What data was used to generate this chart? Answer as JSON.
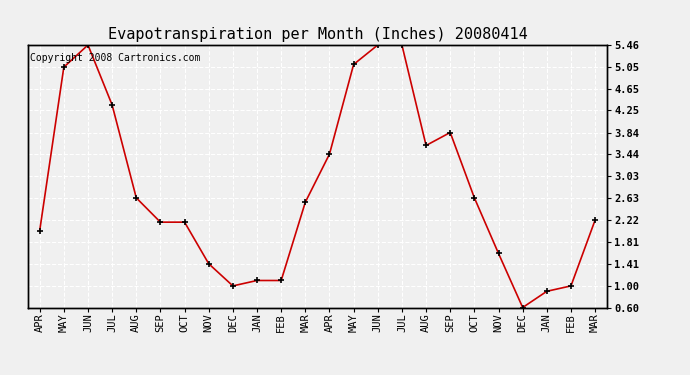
{
  "title": "Evapotranspiration per Month (Inches) 20080414",
  "copyright": "Copyright 2008 Cartronics.com",
  "x_labels": [
    "APR",
    "MAY",
    "JUN",
    "JUL",
    "AUG",
    "SEP",
    "OCT",
    "NOV",
    "DEC",
    "JAN",
    "FEB",
    "MAR",
    "APR",
    "MAY",
    "JUN",
    "JUL",
    "AUG",
    "SEP",
    "OCT",
    "NOV",
    "DEC",
    "JAN",
    "FEB",
    "MAR"
  ],
  "y_values": [
    2.02,
    5.05,
    5.46,
    4.35,
    2.63,
    2.18,
    2.18,
    1.41,
    1.0,
    1.1,
    1.1,
    2.55,
    3.44,
    5.1,
    5.46,
    5.46,
    3.6,
    3.84,
    2.63,
    1.6,
    0.6,
    0.9,
    1.0,
    2.22
  ],
  "y_ticks": [
    0.6,
    1.0,
    1.41,
    1.81,
    2.22,
    2.63,
    3.03,
    3.44,
    3.84,
    4.25,
    4.65,
    5.05,
    5.46
  ],
  "line_color": "#cc0000",
  "marker_color": "#000000",
  "bg_color": "#f0f0f0",
  "plot_bg_color": "#f0f0f0",
  "grid_color": "#ffffff",
  "title_fontsize": 11,
  "copyright_fontsize": 7,
  "tick_fontsize": 7.5
}
